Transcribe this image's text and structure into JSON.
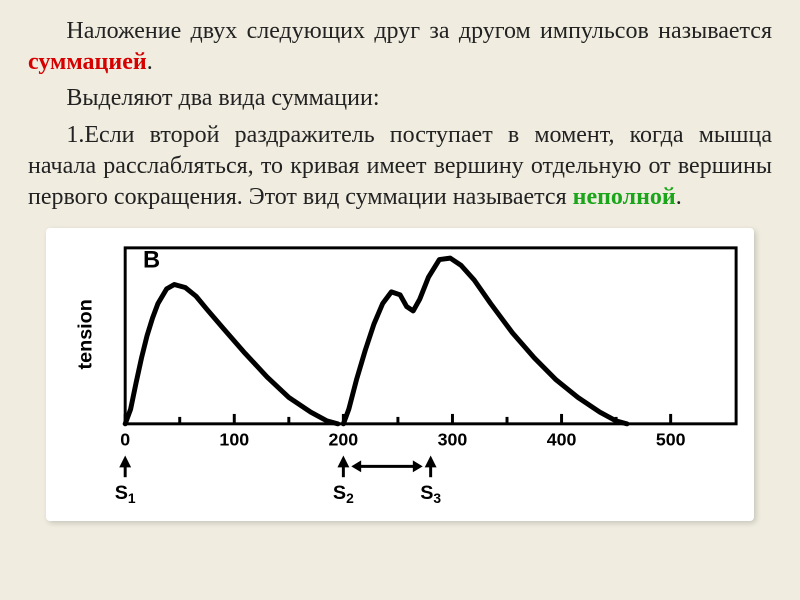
{
  "text": {
    "p1_a": "Наложение двух следующих друг за другом импульсов называется ",
    "p1_term": "суммацией",
    "p1_b": ".",
    "p2": "Выделяют два вида суммации:",
    "p3_a": "1.Если второй раздражитель поступает  в момент, когда мышца начала расслабляться, то кривая имеет вершину отдельную от вершины первого сокращения. Этот вид суммации называется ",
    "p3_term": "неполной",
    "p3_b": "."
  },
  "chart": {
    "panel_label": "B",
    "ylabel": "tension",
    "x_ticks": [
      0,
      100,
      200,
      300,
      400,
      500
    ],
    "x_minor": [
      50,
      150,
      250,
      350,
      450
    ],
    "stimuli": [
      {
        "label": "S",
        "sub": "1",
        "x": 0
      },
      {
        "label": "S",
        "sub": "2",
        "x": 200
      },
      {
        "label": "S",
        "sub": "3",
        "x": 280
      }
    ],
    "arrow_between": {
      "from_x": 200,
      "to_x": 280
    },
    "curve1": [
      [
        0,
        0
      ],
      [
        5,
        10
      ],
      [
        10,
        28
      ],
      [
        15,
        45
      ],
      [
        20,
        60
      ],
      [
        25,
        72
      ],
      [
        30,
        82
      ],
      [
        38,
        92
      ],
      [
        45,
        95
      ],
      [
        55,
        93
      ],
      [
        65,
        87
      ],
      [
        75,
        78
      ],
      [
        90,
        65
      ],
      [
        110,
        48
      ],
      [
        130,
        32
      ],
      [
        150,
        18
      ],
      [
        170,
        8
      ],
      [
        185,
        2
      ],
      [
        195,
        0
      ]
    ],
    "curve2": [
      [
        200,
        0
      ],
      [
        205,
        10
      ],
      [
        212,
        30
      ],
      [
        220,
        50
      ],
      [
        228,
        68
      ],
      [
        236,
        82
      ],
      [
        244,
        90
      ],
      [
        252,
        88
      ],
      [
        258,
        80
      ],
      [
        264,
        77
      ],
      [
        270,
        85
      ],
      [
        278,
        100
      ],
      [
        288,
        112
      ],
      [
        298,
        113
      ],
      [
        308,
        108
      ],
      [
        320,
        98
      ],
      [
        335,
        82
      ],
      [
        355,
        62
      ],
      [
        375,
        45
      ],
      [
        395,
        30
      ],
      [
        415,
        18
      ],
      [
        435,
        8
      ],
      [
        450,
        2
      ],
      [
        460,
        0
      ]
    ],
    "style": {
      "y_max": 120,
      "bg": "#ffffff",
      "axis": "#000000",
      "curve": "#000000",
      "curve_width": 5,
      "axis_width": 3,
      "font_family": "Arial, 'Helvetica Neue', Helvetica, sans-serif",
      "label_font_size": 20,
      "tick_font_size": 18,
      "panel_font_size": 24,
      "x_domain": [
        0,
        560
      ]
    }
  }
}
